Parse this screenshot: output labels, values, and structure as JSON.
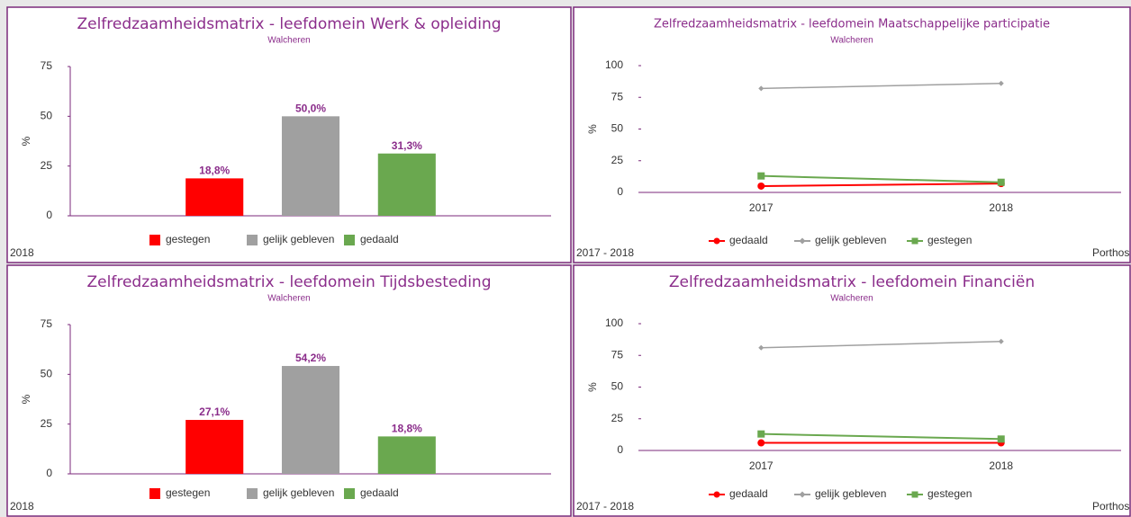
{
  "chart_data": [
    {
      "type": "bar",
      "title": "Zelfredzaamheidsmatrix - leefdomein Werk & opleiding",
      "subtitle": "Walcheren",
      "y_label": "%",
      "footer": "2018",
      "categories": [
        "gestegen",
        "gelijk gebleven",
        "gedaald"
      ],
      "values": [
        18.8,
        50.0,
        31.3
      ],
      "value_labels": [
        "18,8%",
        "50,0%",
        "31,3%"
      ],
      "colors": [
        "#ff0000",
        "#a0a0a0",
        "#6aa84f"
      ],
      "ylim": [
        0,
        75
      ],
      "yticks": [
        0,
        25,
        50,
        75
      ]
    },
    {
      "type": "line",
      "title": "Zelfredzaamheidsmatrix - leefdomein Maatschappelijke participatie",
      "subtitle": "Walcheren",
      "y_label": "%",
      "footer": "2017 - 2018",
      "source": "Porthos",
      "categories": [
        "2017",
        "2018"
      ],
      "series": [
        {
          "name": "gedaald",
          "color": "#ff0000",
          "marker": "circle",
          "values": [
            5,
            7
          ]
        },
        {
          "name": "gelijk gebleven",
          "color": "#a0a0a0",
          "marker": "diamond",
          "values": [
            82,
            86
          ]
        },
        {
          "name": "gestegen",
          "color": "#6aa84f",
          "marker": "square",
          "values": [
            13,
            8
          ]
        }
      ],
      "ylim": [
        0,
        100
      ],
      "yticks": [
        0,
        25,
        50,
        75,
        100
      ]
    },
    {
      "type": "bar",
      "title": "Zelfredzaamheidsmatrix - leefdomein Tijdsbesteding",
      "subtitle": "Walcheren",
      "y_label": "%",
      "footer": "2018",
      "categories": [
        "gestegen",
        "gelijk gebleven",
        "gedaald"
      ],
      "values": [
        27.1,
        54.2,
        18.8
      ],
      "value_labels": [
        "27,1%",
        "54,2%",
        "18,8%"
      ],
      "colors": [
        "#ff0000",
        "#a0a0a0",
        "#6aa84f"
      ],
      "ylim": [
        0,
        75
      ],
      "yticks": [
        0,
        25,
        50,
        75
      ]
    },
    {
      "type": "line",
      "title": "Zelfredzaamheidsmatrix - leefdomein Financiën",
      "subtitle": "Walcheren",
      "y_label": "%",
      "footer": "2017 - 2018",
      "source": "Porthos",
      "categories": [
        "2017",
        "2018"
      ],
      "series": [
        {
          "name": "gedaald",
          "color": "#ff0000",
          "marker": "circle",
          "values": [
            6,
            6
          ]
        },
        {
          "name": "gelijk gebleven",
          "color": "#a0a0a0",
          "marker": "diamond",
          "values": [
            81,
            86
          ]
        },
        {
          "name": "gestegen",
          "color": "#6aa84f",
          "marker": "square",
          "values": [
            13,
            9
          ]
        }
      ],
      "ylim": [
        0,
        100
      ],
      "yticks": [
        0,
        25,
        50,
        75,
        100
      ]
    }
  ]
}
